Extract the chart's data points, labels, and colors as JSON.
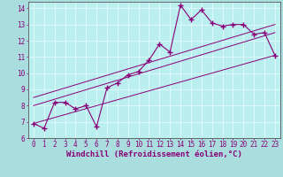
{
  "background_color": "#aadddd",
  "plot_bg_color": "#bbeeee",
  "grid_color": "#ddfafa",
  "line_color": "#880077",
  "xlabel": "Windchill (Refroidissement éolien,°C)",
  "xlim": [
    -0.5,
    23.5
  ],
  "ylim": [
    6,
    14.4
  ],
  "xticks": [
    0,
    1,
    2,
    3,
    4,
    5,
    6,
    7,
    8,
    9,
    10,
    11,
    12,
    13,
    14,
    15,
    16,
    17,
    18,
    19,
    20,
    21,
    22,
    23
  ],
  "yticks": [
    6,
    7,
    8,
    9,
    10,
    11,
    12,
    13,
    14
  ],
  "curve1_x": [
    0,
    1,
    2,
    3,
    4,
    5,
    6,
    7,
    8,
    9,
    10,
    11,
    12,
    13,
    14,
    15,
    16,
    17,
    18,
    19,
    20,
    21,
    22,
    23
  ],
  "curve1_y": [
    6.9,
    6.6,
    8.2,
    8.2,
    7.8,
    8.0,
    6.7,
    9.1,
    9.4,
    9.9,
    10.1,
    10.8,
    11.8,
    11.3,
    14.2,
    13.3,
    13.9,
    13.1,
    12.9,
    13.0,
    13.0,
    12.4,
    12.5,
    11.1
  ],
  "line1_x": [
    0,
    23
  ],
  "line1_y": [
    6.9,
    11.1
  ],
  "line2_x": [
    0,
    23
  ],
  "line2_y": [
    8.0,
    12.5
  ],
  "line3_x": [
    0,
    23
  ],
  "line3_y": [
    8.5,
    13.0
  ],
  "tick_fontsize": 5.5,
  "label_fontsize": 6.5
}
